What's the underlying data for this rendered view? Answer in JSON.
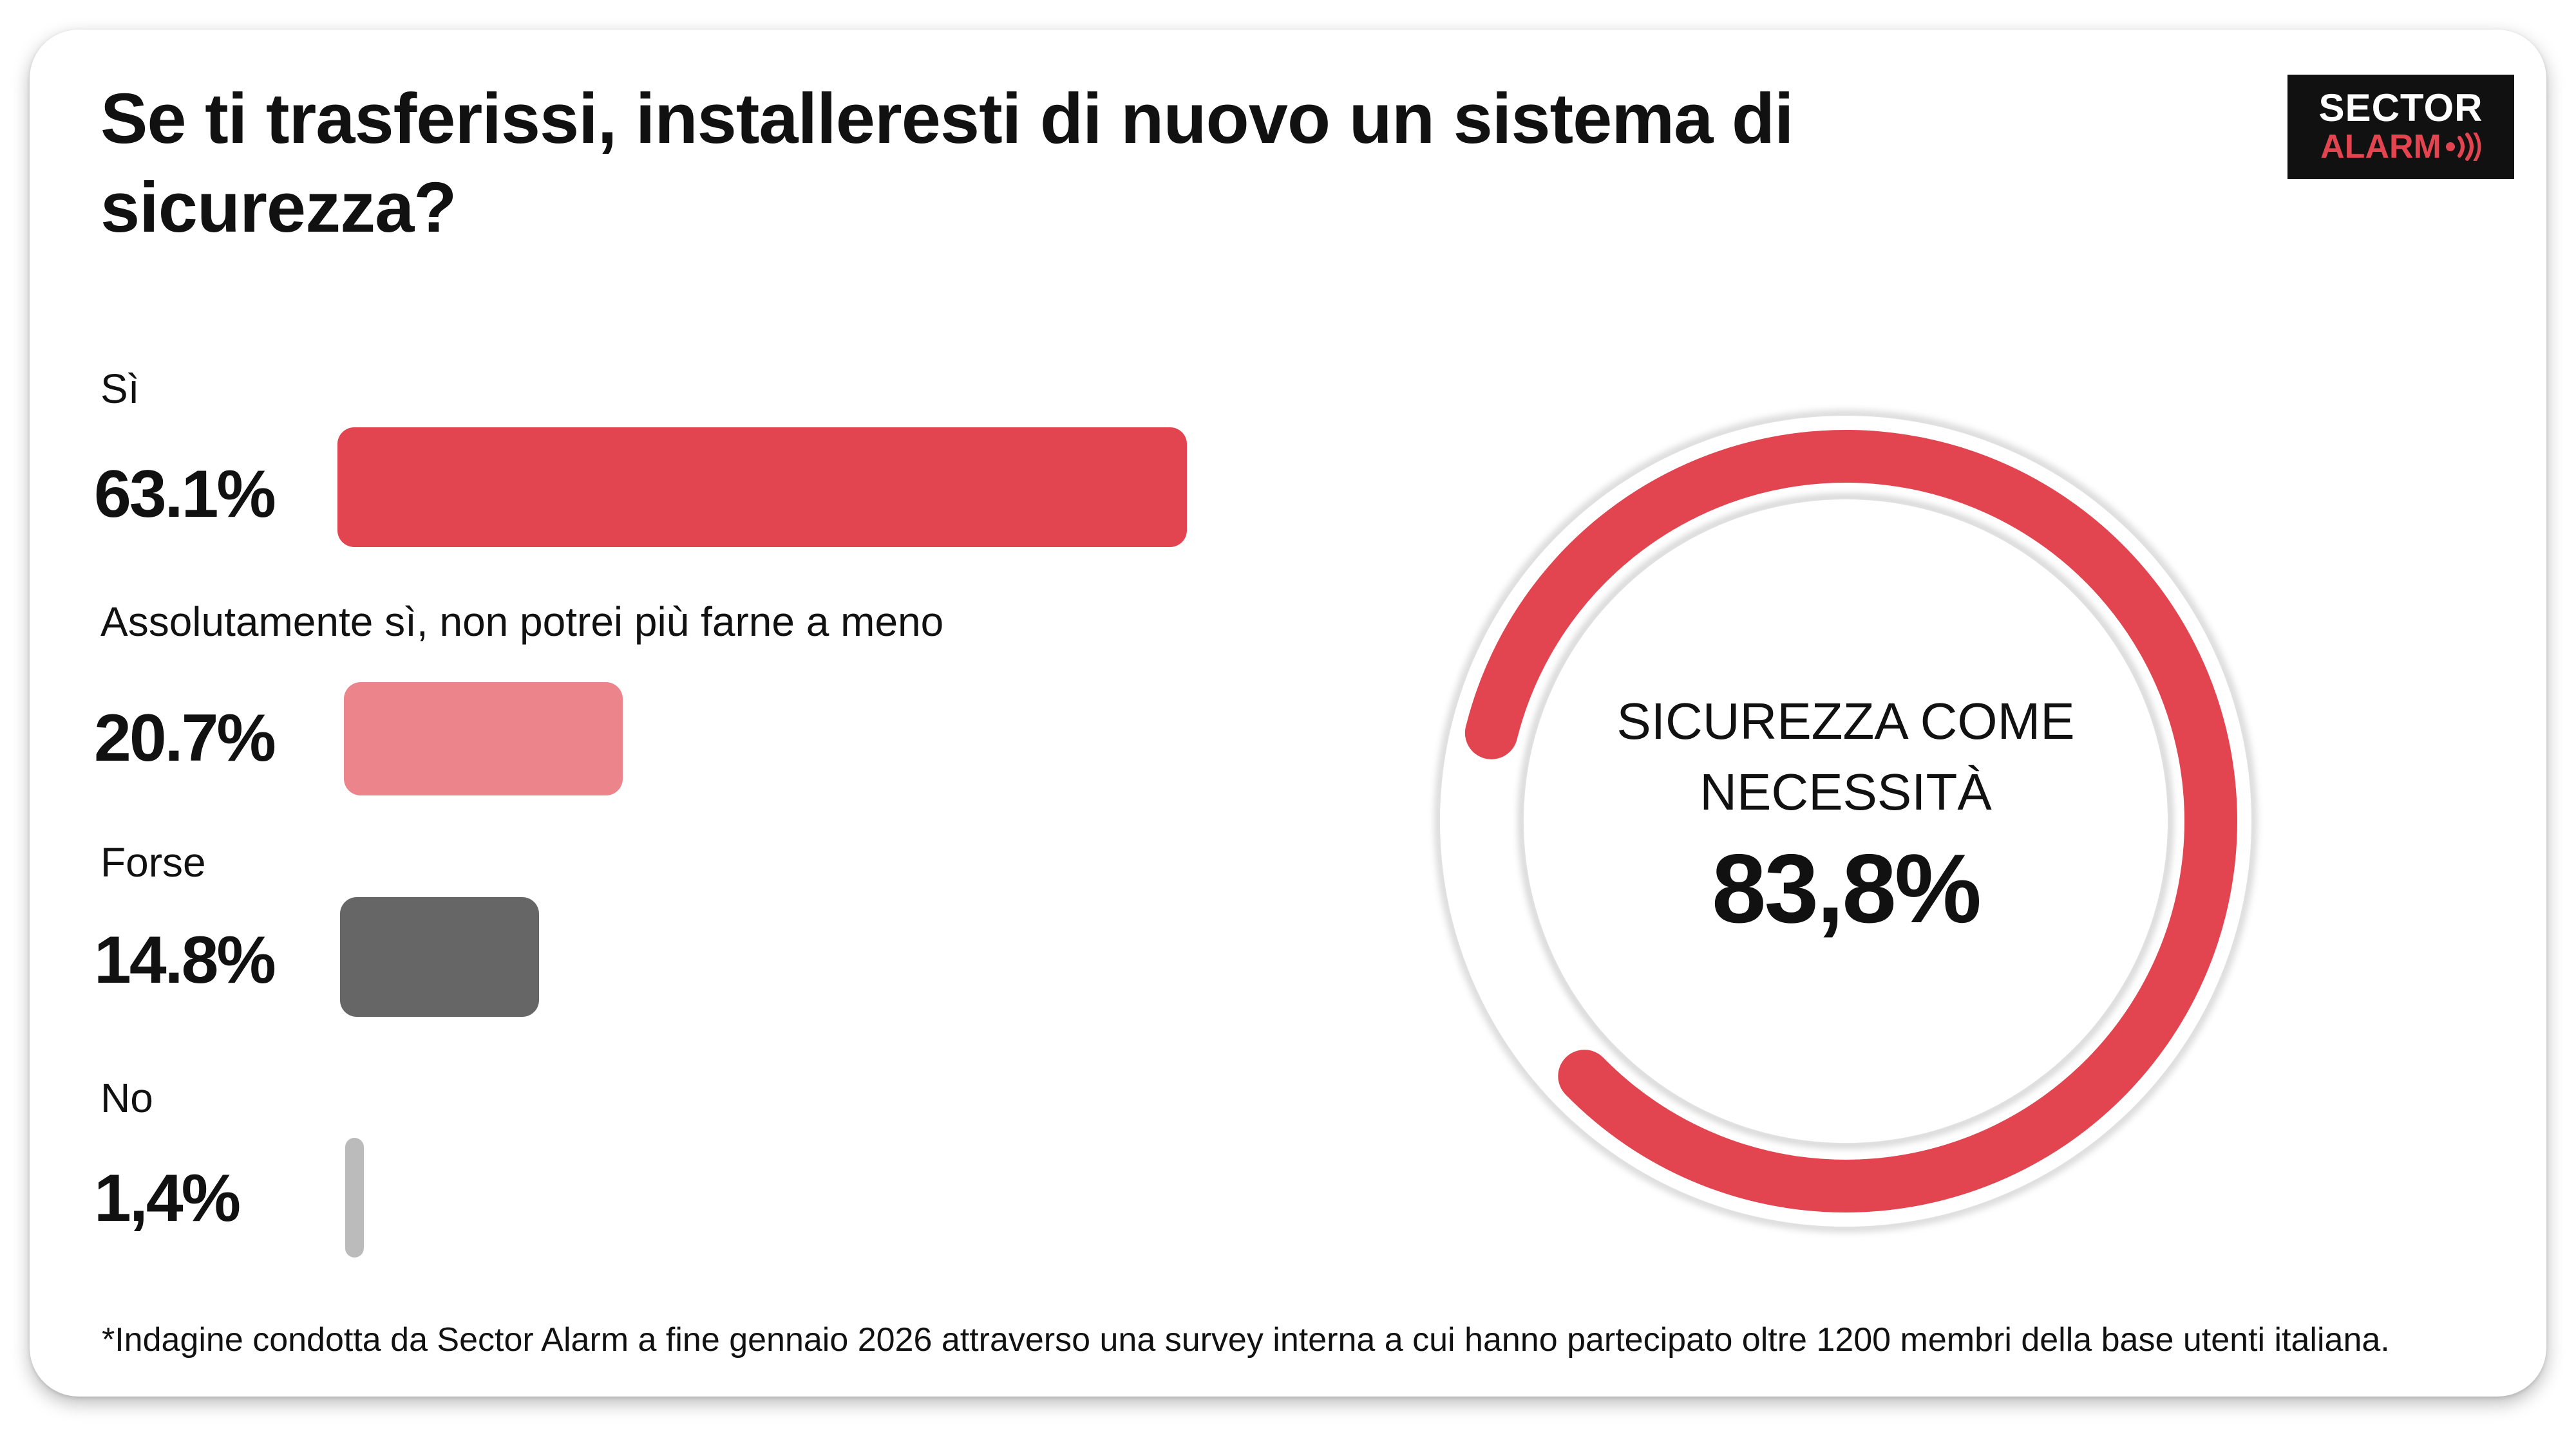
{
  "title": "Se ti trasferissi, installeresti di nuovo un sistema di sicurezza?",
  "logo": {
    "line1": "SECTOR",
    "line2": "ALARM",
    "waves_icon": "signal-waves-icon",
    "background_color": "#111111",
    "accent_color": "#e24450"
  },
  "chart_data": [
    {
      "type": "bar",
      "orientation": "horizontal",
      "categories": [
        "Sì",
        "Assolutamente sì, non potrei più farne a meno",
        "Forse",
        "No"
      ],
      "values": [
        63.1,
        20.7,
        14.8,
        1.4
      ],
      "value_labels": [
        "63.1%",
        "20.7%",
        "14.8%",
        "1,4%"
      ],
      "colors": [
        "#e24450",
        "#ec848b",
        "#666666",
        "#bbbbbb"
      ],
      "unit": "%"
    },
    {
      "type": "pie",
      "style": "donut",
      "caption": "SICUREZZA COME NECESSITÀ",
      "value": 83.8,
      "value_label": "83,8%",
      "color": "#e24450"
    }
  ],
  "footnote": "*Indagine condotta da Sector Alarm a fine gennaio 2026 attraverso una survey interna a cui hanno partecipato oltre 1200 membri della base utenti italiana."
}
